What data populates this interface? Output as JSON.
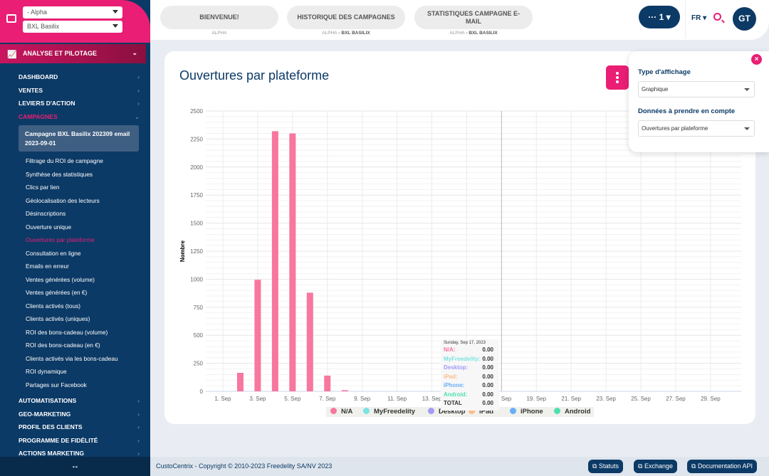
{
  "sidebar": {
    "org_select": "- Alpha",
    "store_select": "BXL Basilix",
    "section": "ANALYSE ET PILOTAGE",
    "nav": [
      "DASHBOARD",
      "VENTES",
      "LEVIERS D'ACTION",
      "CAMPAGNES"
    ],
    "campaign": "Campagne BXL Basilix 202309 email 2023-09-01",
    "sub": [
      "Filtrage du ROI de campagne",
      "Synthèse des statistiques",
      "Clics par lien",
      "Géolocalisation des lecteurs",
      "Désinscriptions",
      "Ouverture unique",
      "Ouvertures par plateforme",
      "Consultation en ligne",
      "Emails en erreur",
      "Ventes générées (volume)",
      "Ventes générées (en €)",
      "Clients activés (tous)",
      "Clients activés (uniques)",
      "ROI des bons-cadeau (volume)",
      "ROI des bons-cadeau (en €)",
      "Clients activés via les bons-cadeau",
      "ROI dynamique",
      "Partages sur Facebook"
    ],
    "active_sub": "Ouvertures par plateforme",
    "nav2": [
      "AUTOMATISATIONS",
      "GEO-MARKETING",
      "PROFIL DES CLIENTS",
      "PROGRAMME DE FIDÉLITÉ",
      "ACTIONS MARKETING"
    ],
    "collapse_icon": "↔"
  },
  "topbar": {
    "tabs": [
      {
        "label": "BIENVENUE!",
        "sub": "ALPHA",
        "sub2": ""
      },
      {
        "label": "HISTORIQUE DES CAMPAGNES",
        "sub": "ALPHA",
        "sub2": " - BXL BASILIX"
      },
      {
        "label": "STATISTIQUES CAMPAGNE E-MAIL",
        "sub": "ALPHA",
        "sub2": " - BXL BASILIX"
      }
    ],
    "notif": "··· 1 ▾",
    "lang": "FR ▾",
    "avatar": "GT"
  },
  "main": {
    "title": "Ouvertures par plateforme"
  },
  "panel": {
    "type_label": "Type d'affichage",
    "type_value": "Graphique",
    "data_label": "Données à prendre en compte",
    "data_value": "Ouvertures par plateforme",
    "close": "×"
  },
  "chart_data": {
    "type": "bar",
    "ylabel": "Nombre",
    "ylim": [
      0,
      2500
    ],
    "yticks": [
      "0",
      "250",
      "500",
      "750",
      "1000",
      "1250",
      "1500",
      "1750",
      "2000",
      "2250",
      "2500"
    ],
    "xticks": [
      "1. Sep",
      "3. Sep",
      "5. Sep",
      "7. Sep",
      "9. Sep",
      "11. Sep",
      "13. Sep",
      "15. Sep",
      "17. Sep",
      "19. Sep",
      "21. Sep",
      "23. Sep",
      "25. Sep",
      "27. Sep",
      "29. Sep"
    ],
    "x": [
      "2023-09-02",
      "2023-09-03",
      "2023-09-04",
      "2023-09-05",
      "2023-09-06",
      "2023-09-07",
      "2023-09-08"
    ],
    "series": [
      {
        "name": "N/A",
        "color": "#f7779f",
        "values": [
          165,
          995,
          2320,
          2300,
          880,
          140,
          10
        ]
      }
    ],
    "legend": [
      {
        "name": "N/A",
        "color": "#f7779f"
      },
      {
        "name": "MyFreedelity",
        "color": "#7ce3e3"
      },
      {
        "name": "Desktop",
        "color": "#a19bf5"
      },
      {
        "name": "iPad",
        "color": "#f9bd8a"
      },
      {
        "name": "iPhone",
        "color": "#6aaef7"
      },
      {
        "name": "Android",
        "color": "#4fe0b0"
      }
    ],
    "grid": true,
    "legend_position": "bottom",
    "tooltip": {
      "date": "Sunday, Sep 17, 2023",
      "rows": [
        {
          "name": "N/A:",
          "value": "0.00",
          "color": "#f7779f"
        },
        {
          "name": "MyFreedelity:",
          "value": "0.00",
          "color": "#7ce3e3"
        },
        {
          "name": "Desktop:",
          "value": "0.00",
          "color": "#a19bf5"
        },
        {
          "name": "iPad:",
          "value": "0.00",
          "color": "#f9bd8a"
        },
        {
          "name": "iPhone:",
          "value": "0.00",
          "color": "#6aaef7"
        },
        {
          "name": "Android:",
          "value": "0.00",
          "color": "#4fe0b0"
        },
        {
          "name": "TOTAL",
          "value": "0.00",
          "color": "#333"
        }
      ]
    }
  },
  "footer": {
    "copyright": "CustoCentrix - Copyright © 2010-2023 Freedelity SA/NV 2023",
    "buttons": [
      "Statuts",
      "Exchange",
      "Documentation API"
    ]
  }
}
